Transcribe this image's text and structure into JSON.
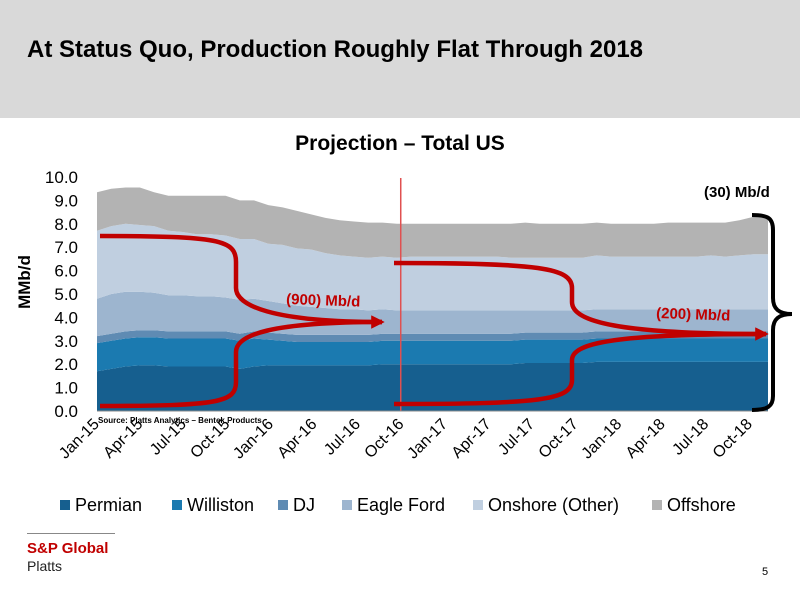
{
  "slide": {
    "title": "At Status Quo, Production Roughly Flat Through 2018",
    "page_number": "5",
    "brand": {
      "name": "S&P Global",
      "sub": "Platts"
    }
  },
  "colors": {
    "Permian": "#165f8f",
    "Williston": "#1b7ab0",
    "DJ": "#5f8bb3",
    "Eagle Ford": "#9db5cf",
    "Onshore (Other)": "#c0cfe0",
    "Offshore": "#b3b3b3",
    "arrow": "#c00000",
    "divider": "#e05050",
    "brand": "#c00000",
    "header_bg": "#d9d9d9"
  },
  "chart_data": {
    "type": "area",
    "stacked": true,
    "title": "Projection – Total US",
    "ylabel": "MMb/d",
    "xlabel": "",
    "ylim": [
      0,
      10
    ],
    "yticks": [
      "0.0",
      "1.0",
      "2.0",
      "3.0",
      "4.0",
      "5.0",
      "6.0",
      "7.0",
      "8.0",
      "9.0",
      "10.0"
    ],
    "xticks": [
      "Jan-15",
      "Apr-15",
      "Jul-15",
      "Oct-15",
      "Jan-16",
      "Apr-16",
      "Jul-16",
      "Oct-16",
      "Jan-17",
      "Apr-17",
      "Jul-17",
      "Oct-17",
      "Jan-18",
      "Apr-18",
      "Jul-18",
      "Oct-18"
    ],
    "source": "Source: Platts Analytics – Bentek Products",
    "projection_start": "Oct-16",
    "legend_position": "bottom",
    "grid": false,
    "series": [
      {
        "name": "Permian",
        "values": [
          1.7,
          1.8,
          1.9,
          1.95,
          1.95,
          1.9,
          1.9,
          1.9,
          1.9,
          1.9,
          1.8,
          1.9,
          1.95,
          1.95,
          1.95,
          1.95,
          1.95,
          1.95,
          1.95,
          1.95,
          2.0,
          2.0,
          2.0,
          2.0,
          2.0,
          2.0,
          2.0,
          2.0,
          2.0,
          2.0,
          2.05,
          2.05,
          2.05,
          2.05,
          2.05,
          2.1,
          2.1,
          2.1,
          2.1,
          2.1,
          2.1,
          2.1,
          2.1,
          2.1,
          2.1,
          2.1,
          2.1,
          2.1
        ]
      },
      {
        "name": "Williston",
        "values": [
          1.2,
          1.2,
          1.2,
          1.2,
          1.2,
          1.2,
          1.2,
          1.2,
          1.2,
          1.2,
          1.2,
          1.2,
          1.1,
          1.05,
          1.0,
          1.0,
          1.0,
          1.0,
          1.0,
          1.0,
          1.0,
          1.0,
          1.0,
          1.0,
          1.0,
          1.0,
          1.0,
          1.0,
          1.0,
          1.0,
          1.0,
          1.0,
          1.0,
          1.0,
          1.0,
          1.0,
          1.0,
          1.0,
          1.0,
          1.0,
          1.0,
          1.0,
          1.0,
          1.0,
          1.0,
          1.0,
          1.0,
          1.0
        ]
      },
      {
        "name": "DJ",
        "values": [
          0.3,
          0.3,
          0.3,
          0.3,
          0.3,
          0.3,
          0.3,
          0.3,
          0.3,
          0.3,
          0.3,
          0.3,
          0.3,
          0.3,
          0.3,
          0.3,
          0.3,
          0.3,
          0.3,
          0.3,
          0.3,
          0.3,
          0.3,
          0.3,
          0.3,
          0.3,
          0.3,
          0.3,
          0.3,
          0.3,
          0.3,
          0.3,
          0.3,
          0.3,
          0.3,
          0.3,
          0.3,
          0.3,
          0.3,
          0.3,
          0.3,
          0.3,
          0.3,
          0.3,
          0.3,
          0.3,
          0.3,
          0.3
        ]
      },
      {
        "name": "Eagle Ford",
        "values": [
          1.6,
          1.7,
          1.7,
          1.65,
          1.6,
          1.55,
          1.55,
          1.5,
          1.5,
          1.45,
          1.45,
          1.4,
          1.35,
          1.3,
          1.25,
          1.2,
          1.15,
          1.1,
          1.1,
          1.05,
          1.05,
          1.0,
          1.0,
          1.0,
          1.0,
          1.0,
          1.0,
          1.0,
          1.0,
          1.0,
          0.95,
          0.95,
          0.95,
          0.95,
          0.95,
          0.95,
          0.95,
          0.95,
          0.95,
          0.95,
          0.95,
          0.95,
          0.95,
          0.95,
          0.95,
          0.95,
          0.95,
          0.95
        ]
      },
      {
        "name": "Onshore (Other)",
        "values": [
          2.9,
          2.9,
          2.9,
          2.85,
          2.85,
          2.75,
          2.7,
          2.65,
          2.65,
          2.65,
          2.6,
          2.55,
          2.45,
          2.5,
          2.45,
          2.45,
          2.35,
          2.3,
          2.25,
          2.25,
          2.25,
          2.25,
          2.3,
          2.3,
          2.3,
          2.3,
          2.3,
          2.3,
          2.3,
          2.25,
          2.25,
          2.25,
          2.25,
          2.25,
          2.25,
          2.3,
          2.25,
          2.25,
          2.25,
          2.25,
          2.25,
          2.25,
          2.25,
          2.3,
          2.25,
          2.3,
          2.35,
          2.35
        ]
      },
      {
        "name": "Offshore",
        "values": [
          1.65,
          1.6,
          1.55,
          1.6,
          1.45,
          1.5,
          1.55,
          1.65,
          1.65,
          1.7,
          1.65,
          1.65,
          1.65,
          1.6,
          1.6,
          1.5,
          1.5,
          1.5,
          1.5,
          1.5,
          1.45,
          1.45,
          1.4,
          1.4,
          1.4,
          1.4,
          1.4,
          1.4,
          1.4,
          1.45,
          1.5,
          1.45,
          1.45,
          1.45,
          1.45,
          1.4,
          1.4,
          1.4,
          1.4,
          1.4,
          1.45,
          1.45,
          1.45,
          1.4,
          1.45,
          1.5,
          1.6,
          1.6
        ]
      }
    ],
    "annotations": [
      {
        "label": "(900) Mb/d",
        "from": [
          "Jan-15",
          "Oct-16"
        ]
      },
      {
        "label": "(200) Mb/d",
        "from": [
          "Oct-16",
          "Oct-18"
        ]
      },
      {
        "label": "(30) Mb/d",
        "from": [
          "Oct-16",
          "Oct-18"
        ]
      }
    ]
  }
}
